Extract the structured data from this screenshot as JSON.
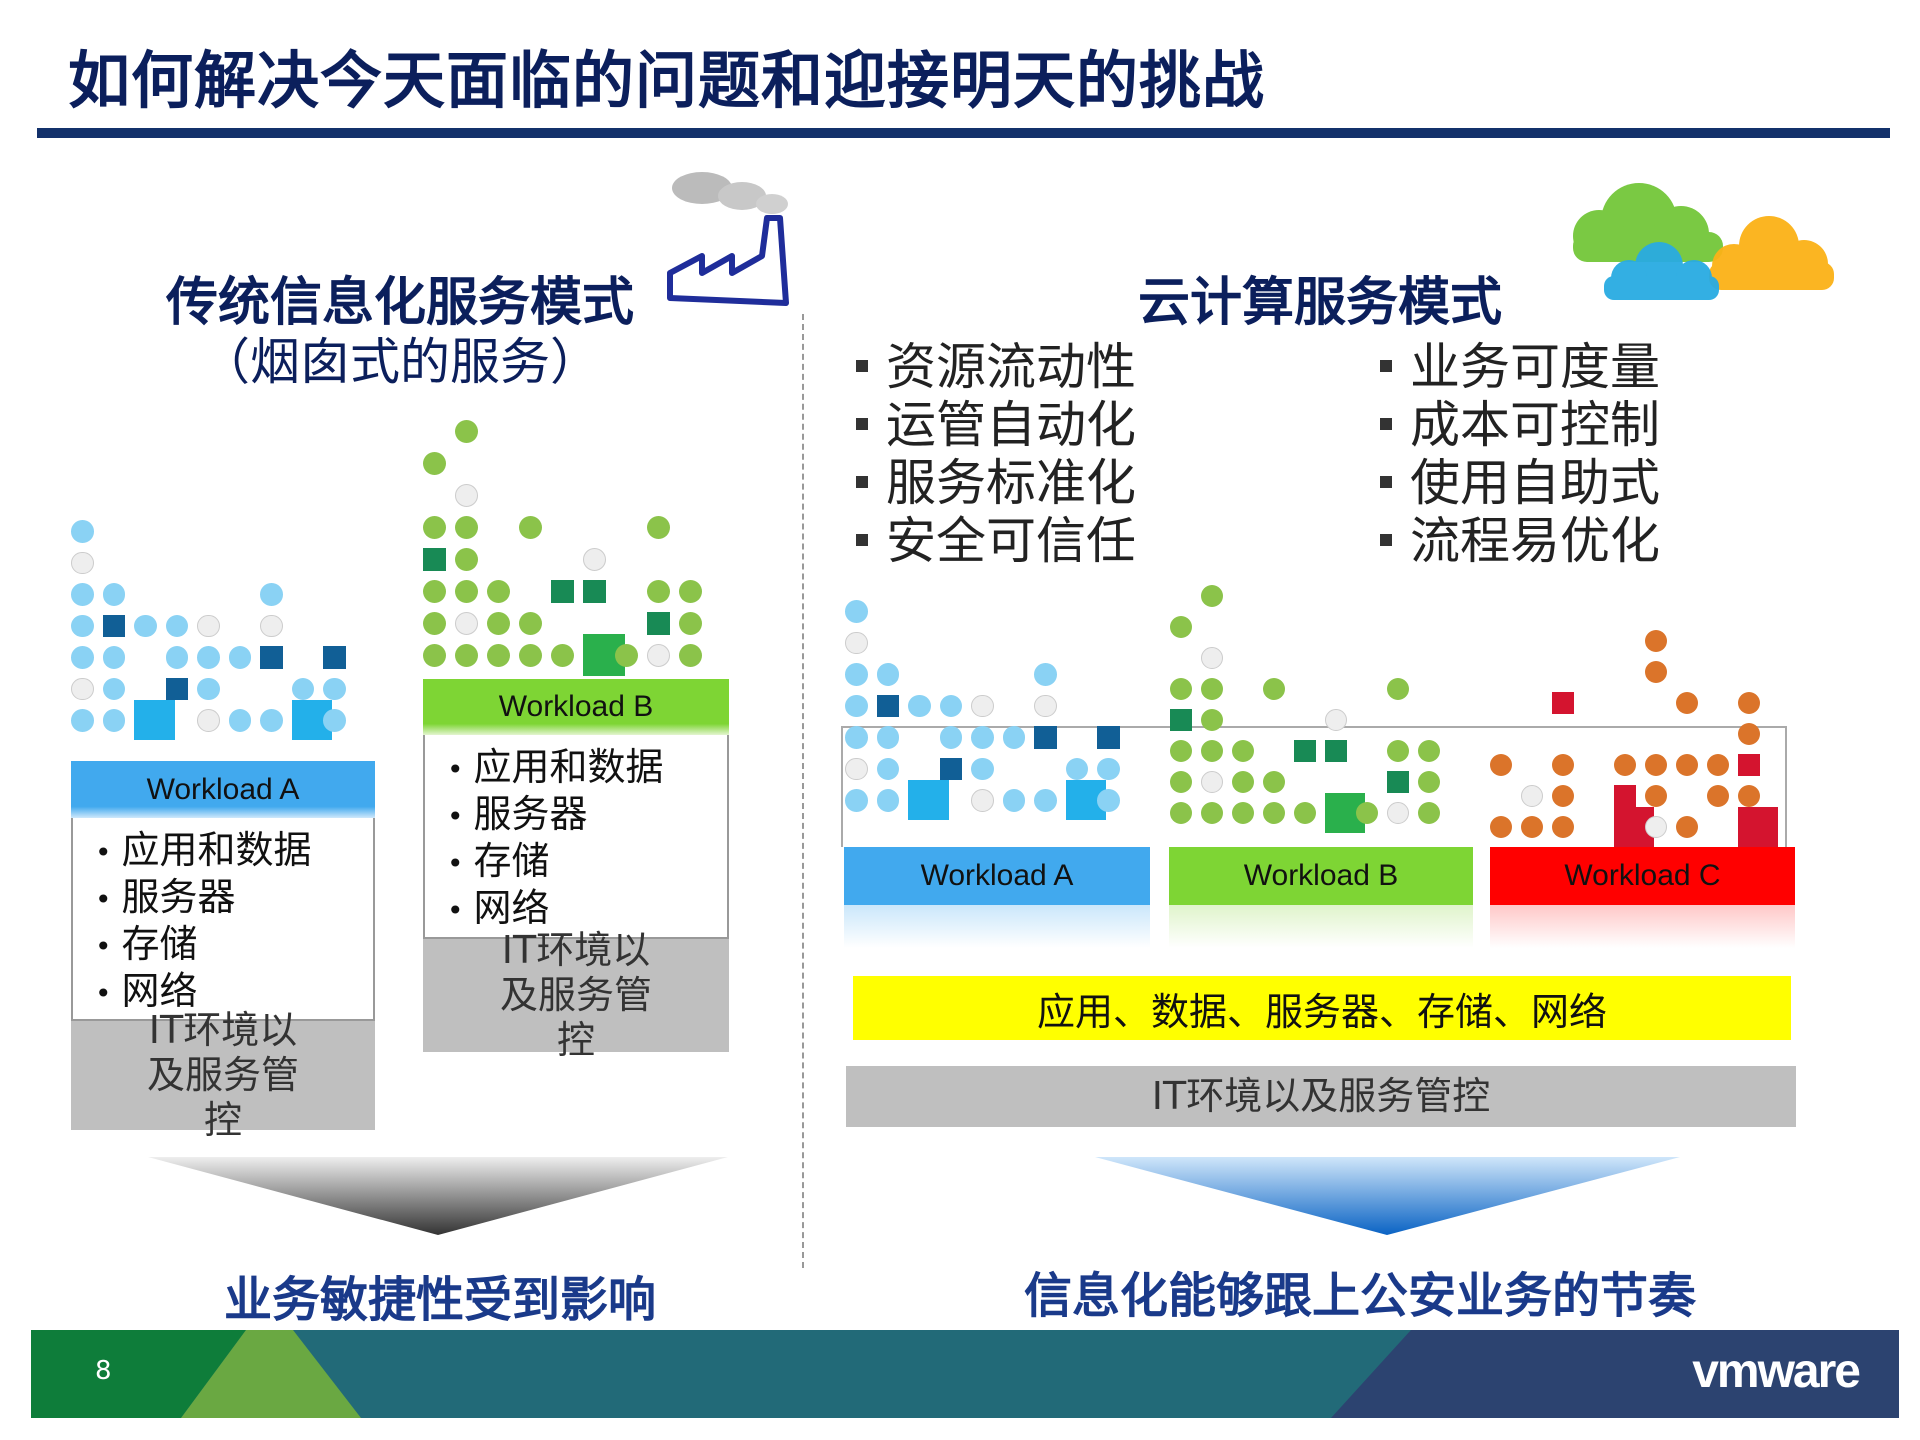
{
  "title": "如何解决今天面临的问题和迎接明天的挑战",
  "left": {
    "heading": "传统信息化服务模式",
    "subheading": "（烟囱式的服务）",
    "workloads": [
      {
        "label": "Workload A",
        "color": "#41a9ee",
        "items": [
          "应用和数据",
          "服务器",
          "存储",
          "网络"
        ],
        "it_label": "IT环境以及服务管控"
      },
      {
        "label": "Workload B",
        "color": "#7ed534",
        "items": [
          "应用和数据",
          "服务器",
          "存储",
          "网络"
        ],
        "it_label": "IT环境以及服务管控"
      }
    ],
    "conclusion": "业务敏捷性受到影响"
  },
  "right": {
    "heading": "云计算服务模式",
    "benefits_left": [
      "资源流动性",
      "运管自动化",
      "服务标准化",
      "安全可信任"
    ],
    "benefits_right": [
      "业务可度量",
      "成本可控制",
      "使用自助式",
      "流程易优化"
    ],
    "workloads": [
      {
        "label": "Workload A",
        "color": "#41a9ee"
      },
      {
        "label": "Workload B",
        "color": "#7ed534"
      },
      {
        "label": "Workload C",
        "color": "#ff0000"
      }
    ],
    "shared_layer": "应用、数据、服务器、存储、网络",
    "shared_layer_color": "#ffff00",
    "it_label": "IT环境以及服务管控",
    "conclusion": "信息化能够跟上公安业务的节奏"
  },
  "footer": {
    "page_number": "8",
    "logo": "vmware"
  },
  "icons": {
    "factory": "factory-icon",
    "clouds": "clouds-icon"
  }
}
